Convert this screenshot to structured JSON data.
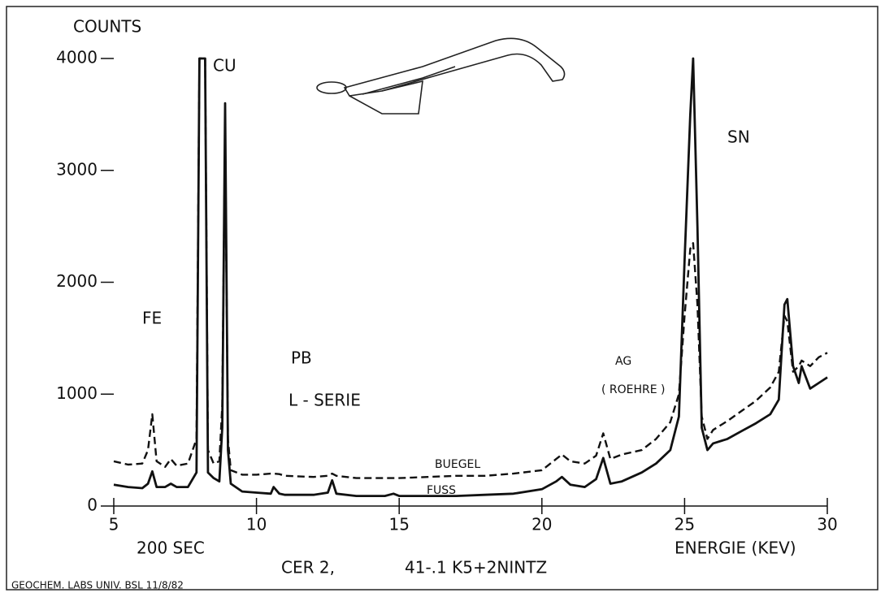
{
  "chart_data": {
    "type": "line",
    "y_label": "COUNTS",
    "x_label": "ENERGIE (KEV)",
    "x": [
      5.0,
      5.5,
      6.0,
      6.2,
      6.35,
      6.5,
      6.8,
      7.0,
      7.2,
      7.6,
      7.9,
      8.0,
      8.2,
      8.3,
      8.5,
      8.7,
      8.8,
      8.9,
      9.0,
      9.1,
      9.5,
      10.0,
      10.5,
      10.6,
      10.8,
      11.0,
      12.0,
      12.5,
      12.65,
      12.8,
      13.5,
      14.5,
      14.8,
      15.0,
      16.0,
      17.0,
      18.0,
      19.0,
      20.0,
      20.5,
      20.7,
      21.0,
      21.5,
      21.9,
      22.15,
      22.4,
      22.8,
      23.5,
      24.0,
      24.5,
      24.8,
      25.0,
      25.2,
      25.3,
      25.45,
      25.6,
      25.8,
      26.0,
      26.5,
      27.0,
      27.5,
      28.0,
      28.3,
      28.5,
      28.6,
      28.8,
      29.0,
      29.1,
      29.4,
      29.7,
      30.0
    ],
    "series": [
      {
        "name": "BUEGEL",
        "color": "#111111",
        "line_style": "dashed",
        "values": [
          400,
          370,
          380,
          500,
          820,
          400,
          350,
          420,
          360,
          380,
          600,
          4000,
          4000,
          500,
          380,
          400,
          900,
          3400,
          600,
          320,
          280,
          280,
          290,
          290,
          285,
          270,
          260,
          270,
          290,
          270,
          250,
          250,
          250,
          250,
          260,
          270,
          270,
          290,
          320,
          420,
          460,
          400,
          380,
          450,
          650,
          420,
          460,
          500,
          600,
          750,
          1000,
          1700,
          2300,
          2350,
          1800,
          800,
          600,
          680,
          760,
          850,
          940,
          1060,
          1200,
          1700,
          1650,
          1200,
          1250,
          1300,
          1250,
          1330,
          1370
        ]
      },
      {
        "name": "FUSS",
        "color": "#111111",
        "line_style": "solid",
        "values": [
          190,
          170,
          160,
          200,
          310,
          170,
          170,
          200,
          170,
          170,
          300,
          4000,
          4000,
          300,
          250,
          220,
          700,
          3600,
          500,
          200,
          130,
          120,
          110,
          170,
          110,
          100,
          100,
          120,
          230,
          110,
          90,
          90,
          110,
          90,
          90,
          90,
          100,
          110,
          150,
          220,
          260,
          190,
          170,
          240,
          430,
          200,
          220,
          300,
          380,
          500,
          800,
          2200,
          3500,
          4000,
          2500,
          700,
          500,
          560,
          600,
          670,
          740,
          820,
          950,
          1800,
          1850,
          1250,
          1100,
          1250,
          1050,
          1100,
          1150
        ]
      }
    ],
    "xlim": [
      5,
      30
    ],
    "ylim": [
      0,
      4000
    ],
    "xticks": [
      5,
      10,
      15,
      20,
      25,
      30
    ],
    "yticks": [
      0,
      1000,
      2000,
      3000,
      4000
    ],
    "grid": false,
    "annotations": [
      "CU",
      "SN",
      "FE",
      "PB",
      "L - SERIE",
      "AG",
      "( ROEHRE )",
      "200 SEC",
      "CER 2,",
      "41-.1 K5+2NINTZ",
      "GEOCHEM. LABS  UNIV. BSL  11/8/82"
    ]
  }
}
